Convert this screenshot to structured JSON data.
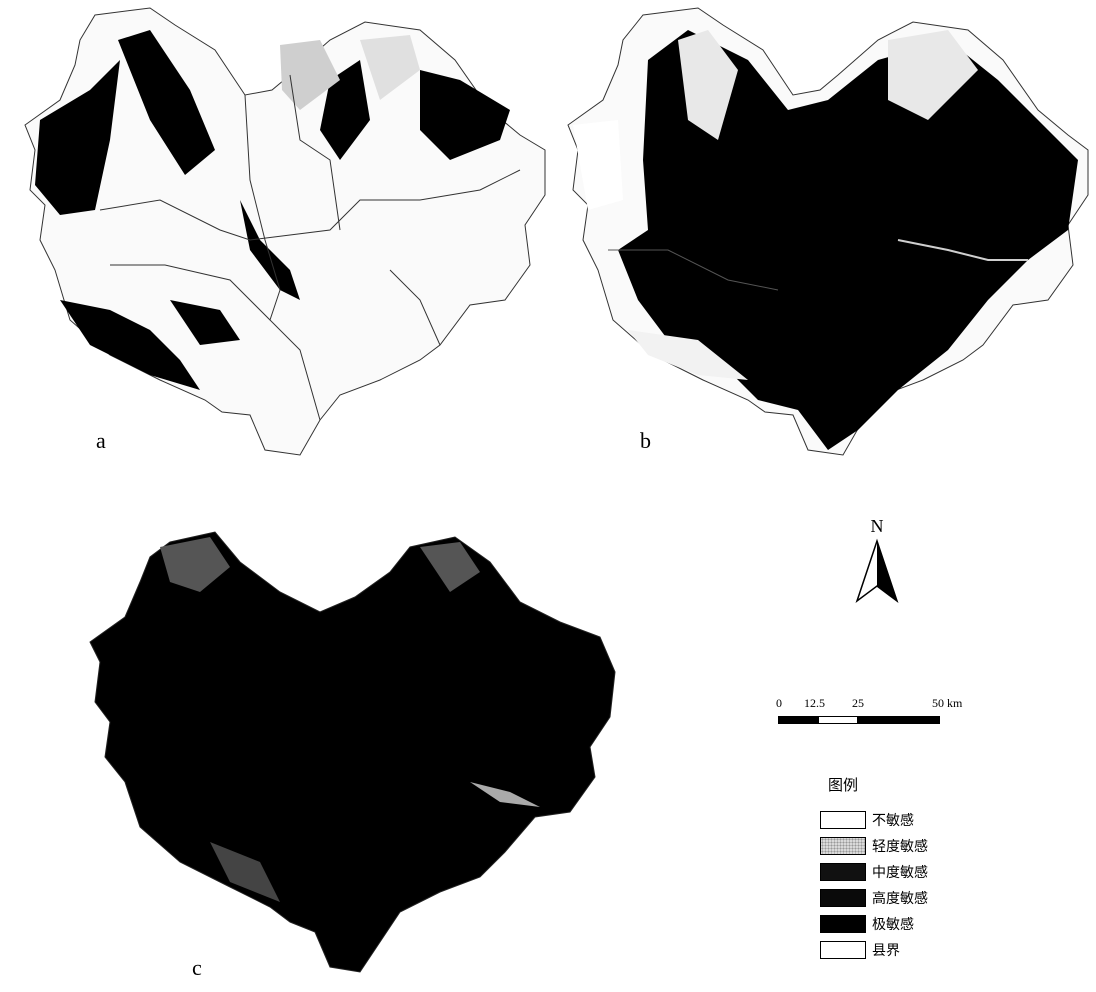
{
  "panels": [
    {
      "letter": "a"
    },
    {
      "letter": "b"
    },
    {
      "letter": "c"
    }
  ],
  "north_arrow": {
    "label": "N"
  },
  "scale_bar": {
    "ticks": [
      "0",
      "12.5",
      "25",
      "50 km"
    ]
  },
  "legend": {
    "title": "图例",
    "items": [
      {
        "label": "不敏感",
        "color": "#ffffff"
      },
      {
        "label": "轻度敏感",
        "color": "#d9d9d9"
      },
      {
        "label": "中度敏感",
        "color": "#111111"
      },
      {
        "label": "高度敏感",
        "color": "#0a0a0a"
      },
      {
        "label": "极敏感",
        "color": "#000000"
      },
      {
        "label": "县界",
        "color": "#ffffff"
      }
    ]
  }
}
